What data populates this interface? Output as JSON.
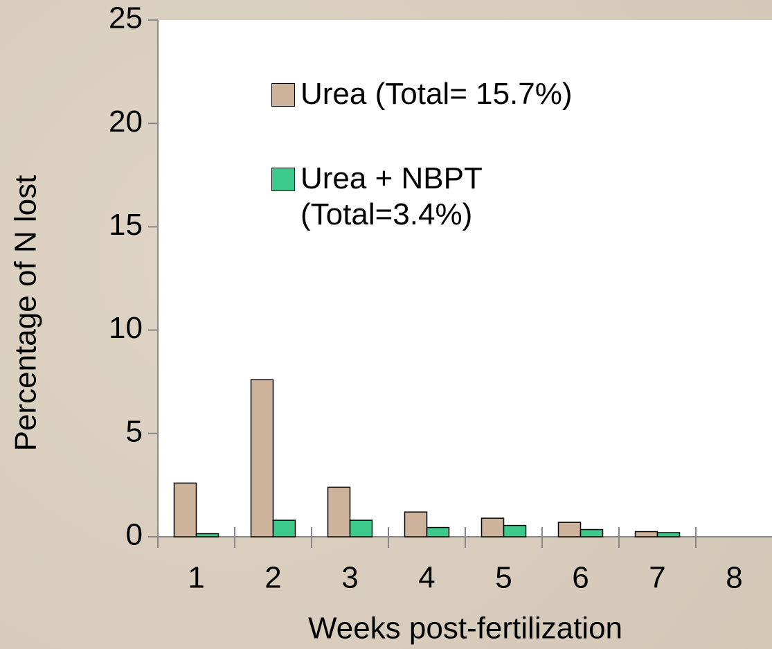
{
  "chart_data": {
    "type": "bar",
    "x_label": "Weeks post-fertilization",
    "y_label": "Percentage of N lost",
    "categories": [
      "1",
      "2",
      "3",
      "4",
      "5",
      "6",
      "7",
      "8"
    ],
    "series": [
      {
        "name": "Urea (Total= 15.7%)",
        "color": "#cdb39c",
        "values": [
          2.6,
          7.6,
          2.4,
          1.2,
          0.9,
          0.7,
          0.25,
          0
        ]
      },
      {
        "name": "Urea + NBPT (Total=3.4%)",
        "color": "#3cc98a",
        "values": [
          0.15,
          0.8,
          0.8,
          0.45,
          0.55,
          0.35,
          0.2,
          0
        ]
      }
    ],
    "ylim": [
      0,
      25
    ],
    "yticks": [
      0,
      5,
      10,
      15,
      20,
      25
    ]
  }
}
